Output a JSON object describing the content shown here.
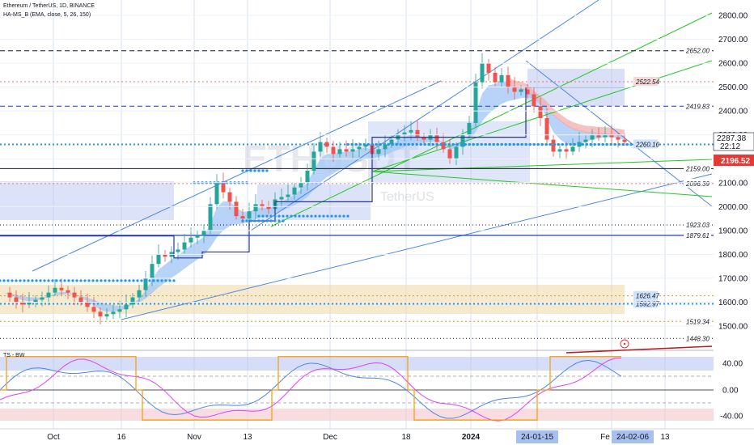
{
  "header": {
    "title": "Ethereum / TetherUS, 1D, BINANCE",
    "indicator": "HA-MS_B (EMA, close, 5, 26, 150)",
    "oscillator": "TS - BW"
  },
  "watermark": {
    "symbol": "ETHUSDT",
    "name": "TetherUS"
  },
  "colors": {
    "accent": "#2962ff",
    "bullish_band": "#a5c8f5",
    "bearish_band": "#f2a7a7",
    "trendline_green": "#22c922",
    "trendline_blue": "#4a86e8",
    "price_label": "#e53935"
  },
  "chart_data": {
    "type": "line",
    "price_axis": {
      "ticks": [
        "2800.00",
        "2700.00",
        "2600.00",
        "2500.00",
        "2400.00",
        "2300.00",
        "2200.00",
        "2100.00",
        "2000.00",
        "1900.00",
        "1800.00",
        "1700.00",
        "1600.00",
        "1500.00"
      ],
      "ylim": [
        1450,
        2820
      ]
    },
    "time_axis": {
      "ticks": [
        "Oct",
        "16",
        "Nov",
        "13",
        "Dec",
        "18",
        "2024",
        "24-01-15",
        "Fe",
        "24-02-06",
        "13"
      ]
    },
    "levels": [
      {
        "label": "2652.00",
        "value": 2652,
        "style": "dashed"
      },
      {
        "label": "2522.54",
        "value": 2522.54,
        "style": "dotted-red"
      },
      {
        "label": "2419.83",
        "value": 2419.83,
        "style": "dashed-blue"
      },
      {
        "label": "2159.00",
        "value": 2159,
        "style": "solid"
      },
      {
        "label": "2096.39",
        "value": 2096.39,
        "style": "dotted-red"
      },
      {
        "label": "1923.03",
        "value": 1923.03,
        "style": "dotted"
      },
      {
        "label": "1879.61",
        "value": 1879.61,
        "style": "solid-blue"
      },
      {
        "label": "1626.47",
        "value": 1626.47,
        "style": "dotted-orange"
      },
      {
        "label": "1592.97",
        "value": 1592.97,
        "style": "dotted-blue"
      },
      {
        "label": "1519.34",
        "value": 1519.34,
        "style": "dotted-orange"
      },
      {
        "label": "1448.30",
        "value": 1448.3,
        "style": "dotted"
      },
      {
        "label": "2260.16",
        "value": 2260.16,
        "style": "dotted-blue"
      }
    ],
    "current_price": {
      "value": "2287.38",
      "countdown": "22:12"
    },
    "alert_price": "2196.52",
    "close_series": {
      "x": [
        0,
        8,
        16,
        24,
        32,
        40,
        48,
        56,
        64,
        72,
        80,
        88,
        96,
        104,
        112,
        120,
        128,
        136,
        144,
        152,
        160,
        168,
        176,
        184,
        192,
        200,
        208,
        216,
        224,
        232,
        240,
        248,
        256,
        264,
        272,
        280,
        288,
        296,
        304,
        312,
        320,
        328,
        336,
        344,
        352,
        360,
        368,
        376,
        384,
        392,
        400,
        408,
        416,
        424,
        432,
        440,
        448,
        456,
        464,
        472,
        480,
        488,
        496,
        504,
        512,
        520,
        528,
        536,
        544,
        552,
        560,
        568,
        576,
        584,
        592,
        600,
        608,
        616,
        624,
        632,
        640,
        648,
        656,
        664,
        672,
        680,
        688,
        696,
        704,
        712,
        720,
        728,
        736,
        744,
        752,
        760,
        768
      ],
      "values": [
        1640,
        1620,
        1600,
        1590,
        1600,
        1610,
        1620,
        1640,
        1660,
        1650,
        1640,
        1620,
        1600,
        1580,
        1560,
        1540,
        1550,
        1560,
        1570,
        1590,
        1620,
        1650,
        1700,
        1760,
        1800,
        1790,
        1810,
        1820,
        1850,
        1870,
        1880,
        1900,
        2010,
        2100,
        2060,
        2020,
        1960,
        1950,
        1980,
        2010,
        2000,
        1990,
        2030,
        2040,
        2050,
        2080,
        2100,
        2150,
        2230,
        2270,
        2250,
        2220,
        2240,
        2230,
        2240,
        2250,
        2260,
        2220,
        2240,
        2260,
        2280,
        2300,
        2310,
        2320,
        2290,
        2280,
        2300,
        2270,
        2240,
        2200,
        2250,
        2300,
        2350,
        2520,
        2600,
        2560,
        2520,
        2550,
        2500,
        2480,
        2490,
        2470,
        2420,
        2370,
        2280,
        2230,
        2240,
        2230,
        2250,
        2270,
        2280,
        2300,
        2290,
        2300,
        2290,
        2280,
        2270
      ]
    },
    "oscillator": {
      "ticks": [
        "40.00",
        "0.00",
        "-40.00"
      ],
      "ylim": [
        -60,
        60
      ]
    }
  }
}
